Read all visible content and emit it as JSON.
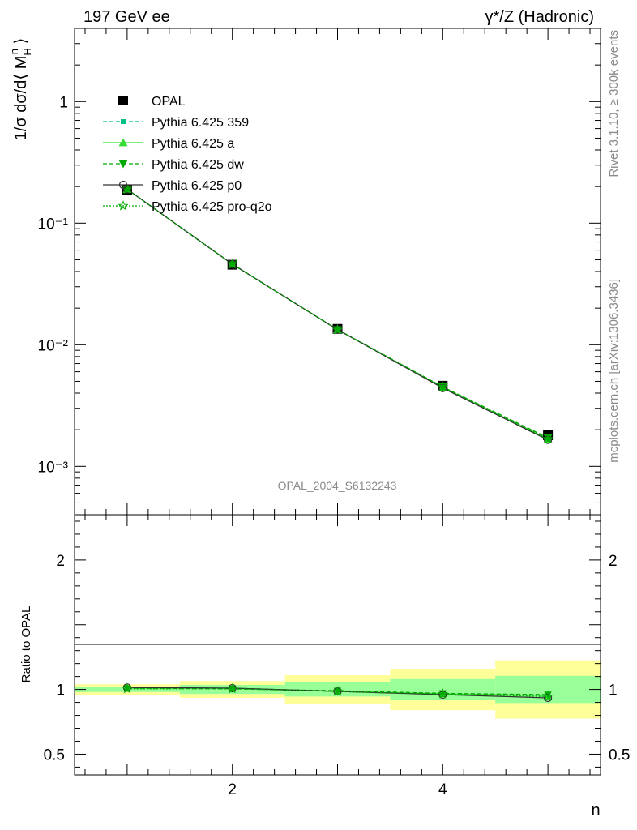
{
  "header": {
    "left": "197 GeV ee",
    "right": "γ*/Z (Hadronic)"
  },
  "side": {
    "rivet": "Rivet 3.1.10, ≥ 300k events",
    "url": "mcplots.cern.ch [arXiv:1306.3436]"
  },
  "analysis_id": "OPAL_2004_S6132243",
  "colors": {
    "data": "#000000",
    "p359": "#00c087",
    "pa": "#33dd33",
    "pdw": "#00aa00",
    "pp0": "#333333",
    "pq2o": "#00aa00",
    "band_outer": "#ffff99",
    "band_inner": "#99ff99"
  },
  "legend": {
    "entries": [
      {
        "label": "OPAL",
        "marker": "square-filled",
        "style": "none",
        "color": "#000000"
      },
      {
        "label": "Pythia 6.425 359",
        "marker": "square-small",
        "style": "dashed",
        "color": "#00c087"
      },
      {
        "label": "Pythia 6.425 a",
        "marker": "triangle-up",
        "style": "solid",
        "color": "#33dd33"
      },
      {
        "label": "Pythia 6.425 dw",
        "marker": "triangle-down",
        "style": "dashed",
        "color": "#00aa00"
      },
      {
        "label": "Pythia 6.425 p0",
        "marker": "circle-open",
        "style": "solid",
        "color": "#333333"
      },
      {
        "label": "Pythia 6.425 pro-q2o",
        "marker": "star-open",
        "style": "dotted",
        "color": "#00aa00"
      }
    ]
  },
  "chart_data": [
    {
      "type": "line",
      "panel": "main",
      "ylabel": "1/σ dσ/d⟨ M_H^n ⟩",
      "yscale": "log",
      "ylim": [
        0.0004,
        4
      ],
      "xlim": [
        0.5,
        5.5
      ],
      "y_tick_labels": [
        "10⁻³",
        "10⁻²",
        "10⁻¹",
        "1"
      ],
      "x": [
        1,
        2,
        3,
        4,
        5
      ],
      "data": {
        "name": "OPAL",
        "values": [
          0.188,
          0.0455,
          0.0135,
          0.0046,
          0.0018
        ]
      },
      "series": [
        {
          "name": "Pythia 6.425 359",
          "values": [
            0.19,
            0.046,
            0.0133,
            0.00445,
            0.00168
          ]
        },
        {
          "name": "Pythia 6.425 a",
          "values": [
            0.19,
            0.046,
            0.0133,
            0.00445,
            0.00168
          ]
        },
        {
          "name": "Pythia 6.425 dw",
          "values": [
            0.19,
            0.046,
            0.0133,
            0.0045,
            0.00172
          ]
        },
        {
          "name": "Pythia 6.425 p0",
          "values": [
            0.19,
            0.046,
            0.0133,
            0.0044,
            0.00165
          ]
        },
        {
          "name": "Pythia 6.425 pro-q2o",
          "values": [
            0.19,
            0.046,
            0.0133,
            0.0045,
            0.00168
          ]
        }
      ]
    },
    {
      "type": "line",
      "panel": "ratio",
      "ylabel": "Ratio to OPAL",
      "xlabel": "n",
      "ylim": [
        0.34,
        2.35
      ],
      "xlim": [
        0.5,
        5.5
      ],
      "y_tick_labels": [
        "0.5",
        "1",
        "2"
      ],
      "x_tick_labels": [
        "2",
        "4"
      ],
      "bands": {
        "outer": [
          [
            0.96,
            1.04
          ],
          [
            0.935,
            1.065
          ],
          [
            0.89,
            1.11
          ],
          [
            0.84,
            1.16
          ],
          [
            0.775,
            1.225
          ]
        ],
        "inner": [
          [
            0.98,
            1.02
          ],
          [
            0.965,
            1.035
          ],
          [
            0.945,
            1.055
          ],
          [
            0.92,
            1.08
          ],
          [
            0.895,
            1.105
          ]
        ]
      },
      "series": [
        {
          "name": "Pythia 6.425 359",
          "values": [
            1.01,
            1.01,
            0.985,
            0.965,
            0.955
          ]
        },
        {
          "name": "Pythia 6.425 a",
          "values": [
            1.01,
            1.01,
            0.985,
            0.965,
            0.955
          ]
        },
        {
          "name": "Pythia 6.425 dw",
          "values": [
            1.01,
            1.005,
            0.99,
            0.97,
            0.96
          ]
        },
        {
          "name": "Pythia 6.425 p0",
          "values": [
            1.015,
            1.01,
            0.985,
            0.96,
            0.935
          ]
        },
        {
          "name": "Pythia 6.425 pro-q2o",
          "values": [
            1.005,
            1.005,
            0.985,
            0.965,
            0.945
          ]
        }
      ]
    }
  ]
}
